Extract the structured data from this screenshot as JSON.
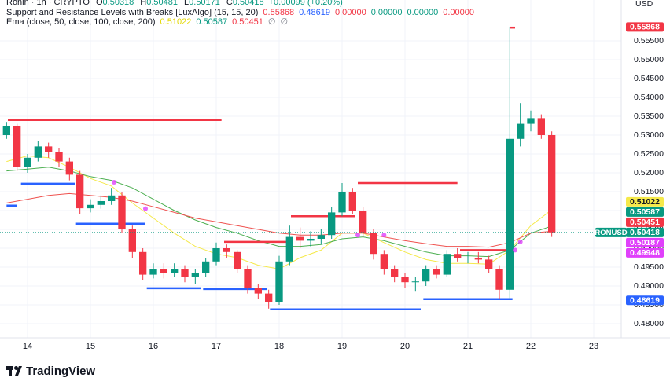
{
  "chart_data": {
    "type": "candlestick",
    "header": {
      "symbol": "Ronin · 1h · CRYPTO",
      "ohlc": [
        [
          "O",
          "0.50318"
        ],
        [
          "H",
          "0.50481"
        ],
        [
          "L",
          "0.50171"
        ],
        [
          "C",
          "0.50418"
        ]
      ],
      "change": "+0.00099 (+0.20%)",
      "indicators": [
        {
          "name": "Support and Resistance Levels with Breaks [LuxAlgo] (15, 15, 20)",
          "values": [
            "0.55868",
            "0.48619",
            "0.00000",
            "0.00000",
            "0.00000",
            "0.00000"
          ],
          "colors": [
            "#f23645",
            "#2962ff",
            "#f23645",
            "#089981",
            "#089981",
            "#f23645"
          ]
        },
        {
          "name": "Ema (close, 50, close, 100, close, 200)",
          "values": [
            "0.51022",
            "0.50587",
            "0.50451",
            "∅",
            "∅"
          ],
          "colors": [
            "#e3d800",
            "#089981",
            "#f23645",
            "#787b86",
            "#787b86"
          ]
        }
      ]
    },
    "currency": "USD",
    "brand": "TradingView",
    "up_color": "#089981",
    "down_color": "#f23645",
    "xlim": [
      -10.5,
      226.5
    ],
    "ylim": [
      0.47625,
      0.56583
    ],
    "xticks": [
      {
        "value": 0,
        "label": "14"
      },
      {
        "value": 24,
        "label": "15"
      },
      {
        "value": 48,
        "label": "16"
      },
      {
        "value": 72,
        "label": "17"
      },
      {
        "value": 96,
        "label": "18"
      },
      {
        "value": 120,
        "label": "19"
      },
      {
        "value": 144,
        "label": "20"
      },
      {
        "value": 168,
        "label": "21"
      },
      {
        "value": 192,
        "label": "22"
      },
      {
        "value": 216,
        "label": "23"
      }
    ],
    "yticks": [
      {
        "value": 0.48,
        "label": "0.48000"
      },
      {
        "value": 0.485,
        "label": "0.48500"
      },
      {
        "value": 0.49,
        "label": "0.49000"
      },
      {
        "value": 0.495,
        "label": "0.49500"
      },
      {
        "value": 0.5,
        "label": "0.50000"
      },
      {
        "value": 0.505,
        "label": "0.50500"
      },
      {
        "value": 0.51,
        "label": "0.51000"
      },
      {
        "value": 0.515,
        "label": "0.51500"
      },
      {
        "value": 0.52,
        "label": "0.52000"
      },
      {
        "value": 0.525,
        "label": "0.52500"
      },
      {
        "value": 0.53,
        "label": "0.53000"
      },
      {
        "value": 0.535,
        "label": "0.53500"
      },
      {
        "value": 0.54,
        "label": "0.54000"
      },
      {
        "value": 0.545,
        "label": "0.54500"
      },
      {
        "value": 0.55,
        "label": "0.55000"
      },
      {
        "value": 0.555,
        "label": "0.55500"
      }
    ],
    "grid": true,
    "x": [
      -8,
      -4,
      0,
      4,
      8,
      12,
      16,
      20,
      24,
      28,
      32,
      36,
      40,
      44,
      48,
      52,
      56,
      60,
      64,
      68,
      72,
      76,
      80,
      84,
      88,
      92,
      96,
      100,
      104,
      108,
      112,
      116,
      120,
      124,
      128,
      132,
      136,
      140,
      144,
      148,
      152,
      156,
      160,
      164,
      168,
      172,
      176,
      180,
      184,
      188,
      192,
      196,
      200
    ],
    "open": [
      0.53,
      0.5325,
      0.5215,
      0.524,
      0.527,
      0.5255,
      0.523,
      0.5195,
      0.5106,
      0.5115,
      0.5125,
      0.514,
      0.505,
      0.499,
      0.493,
      0.4945,
      0.4935,
      0.4945,
      0.4925,
      0.4935,
      0.4965,
      0.5,
      0.499,
      0.4945,
      0.4895,
      0.488,
      0.4858,
      0.4965,
      0.503,
      0.502,
      0.5025,
      0.5035,
      0.5095,
      0.515,
      0.51,
      0.504,
      0.4985,
      0.4945,
      0.4925,
      0.491,
      0.4912,
      0.4945,
      0.493,
      0.4985,
      0.4975,
      0.4975,
      0.497,
      0.4945,
      0.489,
      0.529,
      0.533,
      0.5345,
      0.53
    ],
    "high": [
      0.5335,
      0.533,
      0.525,
      0.5285,
      0.528,
      0.5265,
      0.524,
      0.5205,
      0.513,
      0.514,
      0.516,
      0.515,
      0.506,
      0.5,
      0.496,
      0.496,
      0.496,
      0.4955,
      0.4945,
      0.4975,
      0.5015,
      0.501,
      0.4995,
      0.4955,
      0.4905,
      0.489,
      0.498,
      0.506,
      0.5055,
      0.5045,
      0.505,
      0.511,
      0.5173,
      0.516,
      0.511,
      0.505,
      0.4995,
      0.4955,
      0.4935,
      0.4925,
      0.4955,
      0.4955,
      0.4995,
      0.5,
      0.499,
      0.499,
      0.498,
      0.4955,
      0.5587,
      0.5385,
      0.5365,
      0.5355,
      0.531
    ],
    "low": [
      0.529,
      0.5205,
      0.52,
      0.523,
      0.524,
      0.5215,
      0.518,
      0.509,
      0.5095,
      0.5105,
      0.5115,
      0.504,
      0.4975,
      0.4915,
      0.492,
      0.492,
      0.4925,
      0.491,
      0.4905,
      0.4925,
      0.4955,
      0.4975,
      0.4935,
      0.488,
      0.4865,
      0.484,
      0.485,
      0.4955,
      0.5,
      0.5005,
      0.501,
      0.5025,
      0.5085,
      0.509,
      0.503,
      0.497,
      0.493,
      0.491,
      0.4895,
      0.4885,
      0.49,
      0.492,
      0.4925,
      0.4965,
      0.496,
      0.496,
      0.4935,
      0.4866,
      0.4868,
      0.527,
      0.531,
      0.529,
      0.503
    ],
    "close": [
      0.5325,
      0.5215,
      0.524,
      0.527,
      0.5255,
      0.523,
      0.5195,
      0.5106,
      0.5115,
      0.5125,
      0.514,
      0.505,
      0.499,
      0.493,
      0.4945,
      0.4935,
      0.4945,
      0.4925,
      0.4935,
      0.4965,
      0.5,
      0.499,
      0.4945,
      0.4895,
      0.488,
      0.4858,
      0.4965,
      0.503,
      0.502,
      0.5025,
      0.5035,
      0.5095,
      0.515,
      0.51,
      0.504,
      0.4985,
      0.4945,
      0.4925,
      0.491,
      0.4912,
      0.4945,
      0.493,
      0.4985,
      0.4975,
      0.4975,
      0.497,
      0.4945,
      0.489,
      0.529,
      0.533,
      0.5345,
      0.53,
      0.5042
    ],
    "ema_x": [
      -8,
      0,
      8,
      16,
      24,
      32,
      40,
      48,
      56,
      64,
      72,
      80,
      88,
      96,
      104,
      112,
      120,
      128,
      136,
      144,
      152,
      160,
      168,
      176,
      184,
      192,
      200
    ],
    "ema_series": [
      {
        "color": "#f5e94a",
        "values": [
          0.523,
          0.5245,
          0.524,
          0.5215,
          0.5185,
          0.5165,
          0.512,
          0.508,
          0.504,
          0.5005,
          0.4985,
          0.4975,
          0.4955,
          0.4945,
          0.4975,
          0.4995,
          0.504,
          0.504,
          0.5015,
          0.499,
          0.497,
          0.496,
          0.496,
          0.4958,
          0.4995,
          0.506,
          0.5102
        ]
      },
      {
        "color": "#4caf50",
        "values": [
          0.5205,
          0.521,
          0.5215,
          0.5205,
          0.519,
          0.518,
          0.516,
          0.513,
          0.51,
          0.5075,
          0.5055,
          0.504,
          0.502,
          0.5005,
          0.5005,
          0.501,
          0.5025,
          0.503,
          0.502,
          0.5005,
          0.499,
          0.498,
          0.498,
          0.4978,
          0.4995,
          0.504,
          0.5059
        ]
      },
      {
        "color": "#ef5350",
        "values": [
          0.512,
          0.513,
          0.514,
          0.5145,
          0.514,
          0.5135,
          0.5125,
          0.511,
          0.5095,
          0.508,
          0.507,
          0.506,
          0.505,
          0.504,
          0.5035,
          0.5035,
          0.504,
          0.504,
          0.503,
          0.502,
          0.5012,
          0.5005,
          0.5005,
          0.5003,
          0.5015,
          0.504,
          0.5045
        ]
      }
    ],
    "resistance_color": "#f23645",
    "support_color": "#2962ff",
    "resistance": [
      {
        "start": -7.5,
        "end": 74,
        "value": 0.534
      },
      {
        "start": 75,
        "end": 99,
        "value": 0.5017
      },
      {
        "start": 100.5,
        "end": 125,
        "value": 0.5085
      },
      {
        "start": 126,
        "end": 164,
        "value": 0.5173
      },
      {
        "start": 165,
        "end": 183,
        "value": 0.4995
      },
      {
        "start": 184,
        "end": 186,
        "value": 0.5585
      }
    ],
    "support": [
      {
        "start": -8,
        "end": -4,
        "value": 0.5113
      },
      {
        "start": -2.5,
        "end": 18,
        "value": 0.5171
      },
      {
        "start": 18.5,
        "end": 45,
        "value": 0.5065
      },
      {
        "start": 45.5,
        "end": 66,
        "value": 0.4894
      },
      {
        "start": 67,
        "end": 91.5,
        "value": 0.4892
      },
      {
        "start": 92.5,
        "end": 150,
        "value": 0.4838
      },
      {
        "start": 151,
        "end": 185,
        "value": 0.4865
      }
    ],
    "cross_points": {
      "color": "#e040fb",
      "x": [
        33,
        45,
        126,
        136,
        186,
        188
      ],
      "values": [
        0.5175,
        0.5105,
        0.5035,
        0.5035,
        0.4995,
        0.5017
      ]
    },
    "last_price": {
      "value": 0.50418,
      "color": "#089981"
    },
    "price_tags": [
      {
        "value": 0.55868,
        "color": "#f23645"
      },
      {
        "value": 0.51022,
        "color": "#f5e94a"
      },
      {
        "value": 0.50587,
        "color": "#089981"
      },
      {
        "value": 0.50451,
        "color": "#f23645"
      },
      {
        "value": 0.50418,
        "color": "#089981",
        "name": "RONUSD"
      },
      {
        "value": 0.50187,
        "color": "#e040fb"
      },
      {
        "value": 0.49948,
        "color": "#e040fb"
      },
      {
        "value": 0.48619,
        "color": "#2962ff"
      }
    ]
  }
}
